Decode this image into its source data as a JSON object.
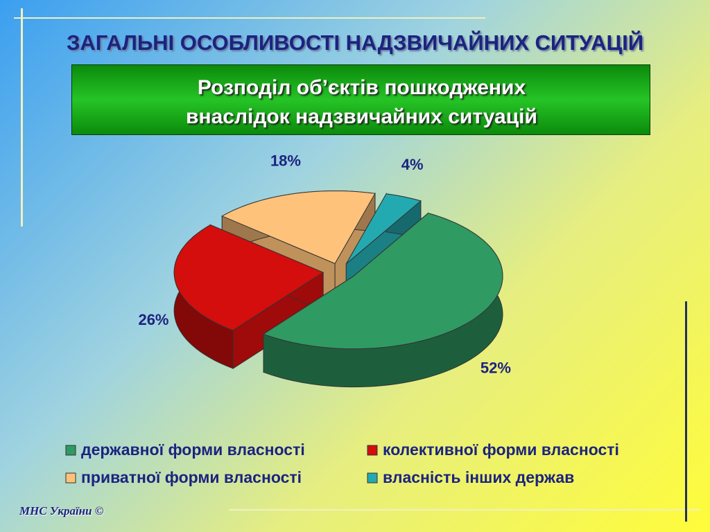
{
  "header": {
    "title": "ЗАГАЛЬНІ ОСОБЛИВОСТІ НАДЗВИЧАЙНИХ СИТУАЦІЙ"
  },
  "chart_data": {
    "type": "pie",
    "title": "Розподіл об’єктів пошкоджених\nвнаслідок надзвичайних ситуацій",
    "categories": [
      "державної форми власності",
      "колективної форми власності",
      "приватної форми власності",
      "власність інших держав"
    ],
    "values": [
      52,
      26,
      18,
      4
    ],
    "value_labels": [
      "52%",
      "26%",
      "18%",
      "4%"
    ],
    "colors": [
      "#2f9a62",
      "#d40d0d",
      "#ffc27a",
      "#23aab0"
    ]
  },
  "footer": {
    "text": "МНС України ©"
  }
}
